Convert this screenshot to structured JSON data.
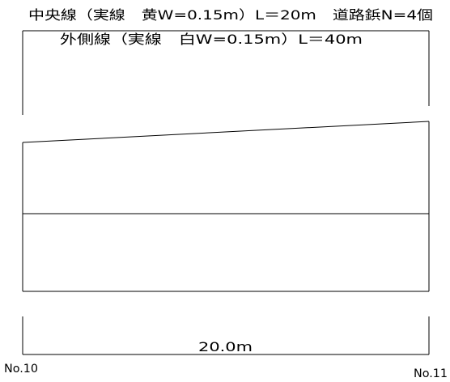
{
  "labels": {
    "center_line": "中央線（実線　黄W=0.15m）L＝20m　道路鋲N=4個",
    "outer_line": "外側線（実線　白W=0.15m）L＝40m",
    "length": "20.0m",
    "station_left": "No.10",
    "station_right": "No.11"
  },
  "colors": {
    "line": "#000000",
    "background": "#ffffff"
  }
}
